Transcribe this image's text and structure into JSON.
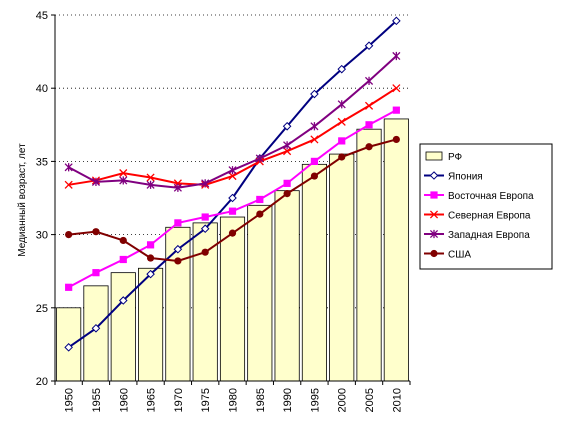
{
  "chart_data": {
    "type": "bar+line",
    "ylabel": "Медианный возраст, лет",
    "xlabel": "",
    "ylim": [
      20,
      45
    ],
    "yticks": [
      20,
      25,
      30,
      35,
      40,
      45
    ],
    "grid": "horizontal dashed",
    "legend_position": "right",
    "categories": [
      "1950",
      "1955",
      "1960",
      "1965",
      "1970",
      "1975",
      "1980",
      "1985",
      "1990",
      "1995",
      "2000",
      "2005",
      "2010"
    ],
    "series": [
      {
        "name": "РФ",
        "kind": "bar",
        "color": "#ffffcc",
        "values": [
          25.0,
          26.5,
          27.4,
          27.7,
          30.5,
          30.8,
          31.2,
          32.0,
          33.0,
          34.8,
          35.5,
          37.2,
          37.9
        ]
      },
      {
        "name": "Япония",
        "kind": "line",
        "color": "#000080",
        "marker": "diamond-open",
        "values": [
          22.3,
          23.6,
          25.5,
          27.3,
          29.0,
          30.4,
          32.5,
          35.2,
          37.4,
          39.6,
          41.3,
          42.9,
          44.6
        ]
      },
      {
        "name": "Восточная Европа",
        "kind": "line",
        "color": "#ff00ff",
        "marker": "square",
        "values": [
          26.4,
          27.4,
          28.3,
          29.3,
          30.8,
          31.2,
          31.6,
          32.4,
          33.5,
          35.0,
          36.4,
          37.5,
          38.5
        ]
      },
      {
        "name": "Северная Европа",
        "kind": "line",
        "color": "#ff0000",
        "marker": "x",
        "values": [
          33.4,
          33.7,
          34.2,
          33.9,
          33.5,
          33.4,
          34.0,
          35.0,
          35.7,
          36.5,
          37.7,
          38.8,
          40.0
        ]
      },
      {
        "name": "Западная Европа",
        "kind": "line",
        "color": "#800080",
        "marker": "star",
        "values": [
          34.6,
          33.6,
          33.7,
          33.4,
          33.2,
          33.5,
          34.4,
          35.2,
          36.1,
          37.4,
          38.9,
          40.5,
          42.2
        ]
      },
      {
        "name": "США",
        "kind": "line",
        "color": "#800000",
        "marker": "circle",
        "values": [
          30.0,
          30.2,
          29.6,
          28.4,
          28.2,
          28.8,
          30.1,
          31.4,
          32.8,
          34.0,
          35.3,
          36.0,
          36.5
        ]
      }
    ]
  }
}
